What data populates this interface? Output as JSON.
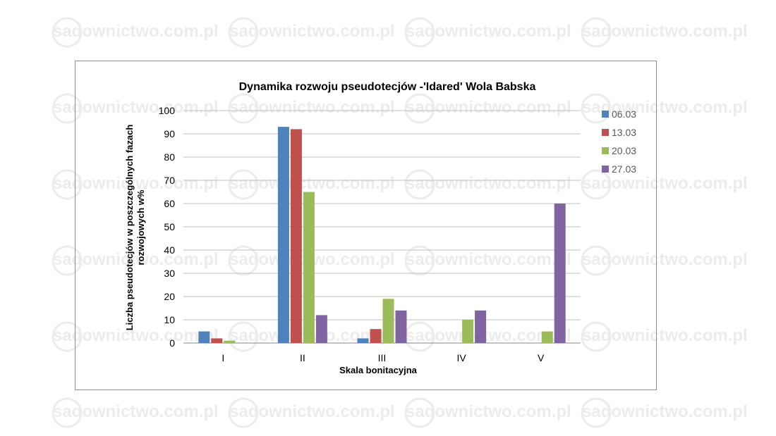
{
  "watermark": {
    "text": "sadownictwo.com.pl",
    "color": "#ececec"
  },
  "chart_data": {
    "type": "bar",
    "title": "Dynamika  rozwoju  pseudotecjów  -'Idared'  Wola Babska",
    "xlabel": "Skala bonitacyjna",
    "ylabel": "Liczba pseudotecjów w poszczególnych fazach rozwojowych w%",
    "ylabel_lines": [
      "Liczba pseudotecjów w poszczególnych fazach",
      "rozwojowych w%"
    ],
    "categories": [
      "I",
      "II",
      "III",
      "IV",
      "V"
    ],
    "ylim": [
      0,
      100
    ],
    "yticks": [
      0,
      10,
      20,
      30,
      40,
      50,
      60,
      70,
      80,
      90,
      100
    ],
    "grid": true,
    "legend_position": "right",
    "series": [
      {
        "name": "06.03",
        "color": "#4f81bd",
        "values": [
          5,
          93,
          2,
          0,
          0
        ]
      },
      {
        "name": "13.03",
        "color": "#c0504d",
        "values": [
          2,
          92,
          6,
          0,
          0
        ]
      },
      {
        "name": "20.03",
        "color": "#9bbb59",
        "values": [
          1,
          65,
          19,
          10,
          5
        ]
      },
      {
        "name": "27.03",
        "color": "#8064a2",
        "values": [
          0,
          12,
          14,
          14,
          60
        ]
      }
    ]
  }
}
